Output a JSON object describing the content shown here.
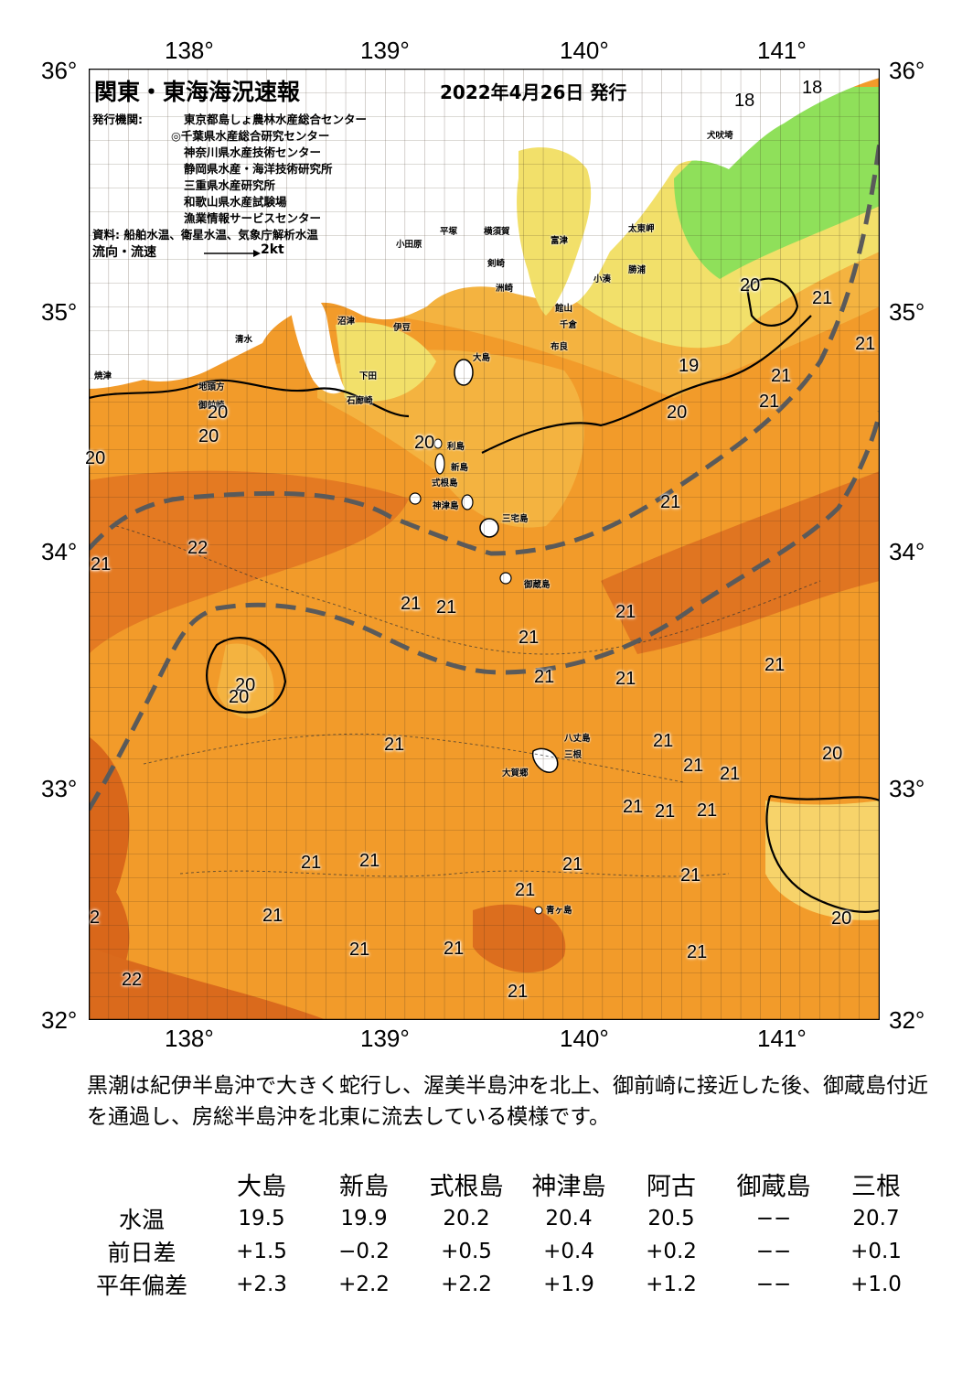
{
  "header": {
    "title": "関東・東海海況速報",
    "date": "2022年4月26日 発行",
    "issuer_label": "発行機関:",
    "issuers": [
      "東京都島しょ農林水産総合センター",
      "◎千葉県水産総合研究センター",
      "神奈川県水産技術センター",
      "静岡県水産・海洋技術研究所",
      "三重県水産研究所",
      "和歌山県水産試験場",
      "漁業情報サービスセンター"
    ],
    "source": "資料: 船舶水温、衛星水温、気象庁解析水温",
    "flow_label": "流向・流速",
    "flow_scale": "2kt"
  },
  "axes": {
    "lon_ticks": [
      "138°",
      "139°",
      "140°",
      "141°"
    ],
    "lat_ticks": [
      "36°",
      "35°",
      "34°",
      "33°",
      "32°"
    ]
  },
  "colors": {
    "sea_warm": "#f29b2a",
    "sea_hot": "#d9671a",
    "sea_mid": "#f4b340",
    "coast_yellow": "#f2e06a",
    "coast_green": "#8fe05a",
    "land": "#ffffff",
    "kuroshio_line": "#5a5a5a"
  },
  "temp_labels": [
    "18",
    "18",
    "20",
    "21",
    "21",
    "19",
    "21",
    "21",
    "20",
    "20",
    "20",
    "20",
    "20",
    "21",
    "22",
    "21",
    "21",
    "21",
    "21",
    "21",
    "21",
    "20",
    "20",
    "21",
    "21",
    "20",
    "21",
    "21",
    "21",
    "21",
    "21",
    "21",
    "21",
    "21",
    "2",
    "21",
    "21",
    "21",
    "21",
    "21",
    "21",
    "21",
    "22",
    "21",
    "20",
    "21"
  ],
  "places": [
    "犬吠埼",
    "太東岬",
    "小田原",
    "平塚",
    "横須賀",
    "剣崎",
    "洲崎",
    "富津",
    "勝浦",
    "小湊",
    "千倉",
    "布良",
    "館山",
    "大島",
    "伊豆",
    "沼津",
    "清水",
    "焼津",
    "御前崎",
    "地頭方",
    "下田",
    "石廊崎",
    "三宅島",
    "利島",
    "新島",
    "式根島",
    "神津島",
    "御蔵島",
    "八丈島",
    "三根",
    "大賀郷",
    "青ヶ島"
  ],
  "summary": "黒潮は紀伊半島沖で大きく蛇行し、渥美半島沖を北上、御前崎に接近した後、御蔵島付近を通過し、房総半島沖を北東に流去している模様です。",
  "stats": {
    "columns": [
      "大島",
      "新島",
      "式根島",
      "神津島",
      "阿古",
      "御蔵島",
      "三根"
    ],
    "rows": [
      {
        "label": "水温",
        "values": [
          "19.5",
          "19.9",
          "20.2",
          "20.4",
          "20.5",
          "−−",
          "20.7"
        ]
      },
      {
        "label": "前日差",
        "values": [
          "+1.5",
          "−0.2",
          "+0.5",
          "+0.4",
          "+0.2",
          "−−",
          "+0.1"
        ]
      },
      {
        "label": "平年偏差",
        "values": [
          "+2.3",
          "+2.2",
          "+2.2",
          "+1.9",
          "+1.2",
          "−−",
          "+1.0"
        ]
      }
    ]
  }
}
